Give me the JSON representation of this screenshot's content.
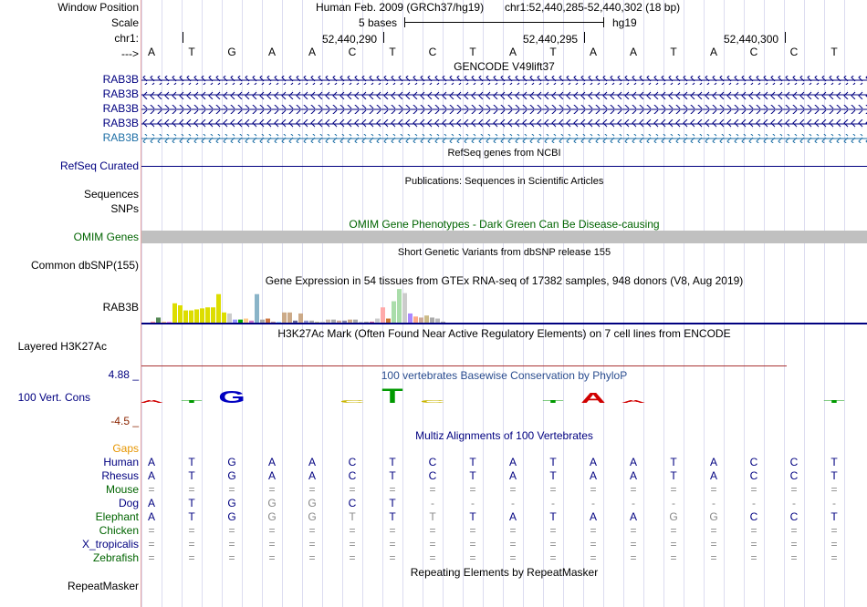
{
  "labels": {
    "window_position": "Window Position",
    "scale": "Scale",
    "chrom": "chr1:",
    "arrow": "--->",
    "gencode_genes": [
      "RAB3B",
      "RAB3B",
      "RAB3B",
      "RAB3B",
      "RAB3B"
    ],
    "refseq": "RefSeq Curated",
    "sequences": "Sequences",
    "snps": "SNPs",
    "omim": "OMIM Genes",
    "dbsnp": "Common dbSNP(155)",
    "gtex_gene": "RAB3B",
    "h3k27ac": "Layered H3K27Ac",
    "phylop_max": "4.88 _",
    "phylop_label": "100 Vert. Cons",
    "phylop_min": "-4.5 _",
    "gaps": "Gaps",
    "species": [
      "Human",
      "Rhesus",
      "Mouse",
      "Dog",
      "Elephant",
      "Chicken",
      "X_tropicalis",
      "Zebrafish"
    ],
    "repeatmasker": "RepeatMasker"
  },
  "header": {
    "assembly": "Human Feb. 2009 (GRCh37/hg19)",
    "position": "chr1:52,440,285-52,440,302 (18 bp)",
    "scale_text": "5 bases",
    "scale_db": "hg19",
    "coords": [
      "52,440,290",
      "52,440,295",
      "52,440,300"
    ]
  },
  "sequence": [
    "A",
    "T",
    "G",
    "A",
    "A",
    "C",
    "T",
    "C",
    "T",
    "A",
    "T",
    "A",
    "A",
    "T",
    "A",
    "C",
    "C",
    "T"
  ],
  "track_titles": {
    "gencode": "GENCODE V49lift37",
    "refseq": "RefSeq genes from NCBI",
    "publications": "Publications: Sequences in Scientific Articles",
    "omim": "OMIM Gene Phenotypes - Dark Green Can Be Disease-causing",
    "dbsnp": "Short Genetic Variants from dbSNP release 155",
    "gtex": "Gene Expression in 54 tissues from GTEx RNA-seq of 17382 samples, 948 donors (V8, Aug 2019)",
    "h3k27ac": "H3K27Ac Mark (Often Found Near Active Regulatory Elements) on 7 cell lines from ENCODE",
    "phylop": "100 vertebrates Basewise Conservation by PhyloP",
    "multiz": "Multiz Alignments of 100 Vertebrates",
    "repeatmasker": "Repeating Elements by RepeatMasker"
  },
  "phylop_letters": [
    {
      "base": "A",
      "color": "#d00000",
      "pos": 0,
      "height": 0.15
    },
    {
      "base": "T",
      "color": "#009900",
      "pos": 1,
      "height": 0.1
    },
    {
      "base": "G",
      "color": "#0000c0",
      "pos": 2,
      "height": 0.7
    },
    {
      "base": "C",
      "color": "#c8b400",
      "pos": 5,
      "height": 0.1
    },
    {
      "base": "T",
      "color": "#009900",
      "pos": 6,
      "height": 0.85
    },
    {
      "base": "C",
      "color": "#c8b400",
      "pos": 7,
      "height": 0.1
    },
    {
      "base": "T",
      "color": "#009900",
      "pos": 10,
      "height": 0.08
    },
    {
      "base": "A",
      "color": "#d00000",
      "pos": 11,
      "height": 0.6
    },
    {
      "base": "A",
      "color": "#d00000",
      "pos": 12,
      "height": 0.15
    },
    {
      "base": "T",
      "color": "#009900",
      "pos": 17,
      "height": 0.08
    }
  ],
  "alignment": {
    "Rhesus": [
      "A",
      "T",
      "G",
      "A",
      "A",
      "C",
      "T",
      "C",
      "T",
      "A",
      "T",
      "A",
      "A",
      "T",
      "A",
      "C",
      "C",
      "T"
    ],
    "Mouse": [
      "=",
      "=",
      "=",
      "=",
      "=",
      "=",
      "=",
      "=",
      "=",
      "=",
      "=",
      "=",
      "=",
      "=",
      "=",
      "=",
      "=",
      "="
    ],
    "Dog": [
      "A",
      "T",
      "G",
      "G",
      "G",
      "C",
      "T",
      "-",
      "-",
      "-",
      "-",
      "-",
      "-",
      "-",
      "-",
      "-",
      "-",
      "-"
    ],
    "Elephant": [
      "A",
      "T",
      "G",
      "G",
      "G",
      "T",
      "T",
      "T",
      "T",
      "A",
      "T",
      "A",
      "A",
      "G",
      "G",
      "C",
      "C",
      "T"
    ],
    "Chicken": [
      "=",
      "=",
      "=",
      "=",
      "=",
      "=",
      "=",
      "=",
      "=",
      "=",
      "=",
      "=",
      "=",
      "=",
      "=",
      "=",
      "=",
      "="
    ],
    "X_tropicalis": [
      "=",
      "=",
      "=",
      "=",
      "=",
      "=",
      "=",
      "=",
      "=",
      "=",
      "=",
      "=",
      "=",
      "=",
      "=",
      "=",
      "=",
      "="
    ],
    "Zebrafish": [
      "=",
      "=",
      "=",
      "=",
      "=",
      "=",
      "=",
      "=",
      "=",
      "=",
      "=",
      "=",
      "=",
      "=",
      "=",
      "=",
      "=",
      "="
    ]
  },
  "chart_data": {
    "type": "bar",
    "title": "Gene Expression in 54 tissues from GTEx RNA-seq of 17382 samples, 948 donors (V8, Aug 2019)",
    "series": [
      {
        "name": "RAB3B",
        "values": [
          0.1,
          0.5,
          0.1,
          0.1,
          1.9,
          1.7,
          1.2,
          1.2,
          1.3,
          1.4,
          1.5,
          1.5,
          2.8,
          1.0,
          0.9,
          0.3,
          0.3,
          0.4,
          0.2,
          2.8,
          0.3,
          0.4,
          0.1,
          0.1,
          1.0,
          1.0,
          0.2,
          0.9,
          0.2,
          0.2,
          0.1,
          0.1,
          0.3,
          0.3,
          0.2,
          0.2,
          0.3,
          0.3,
          0.1,
          0.1,
          0.1,
          0.4,
          1.5,
          0.4,
          2.1,
          3.3,
          2.9,
          0.9,
          0.6,
          0.5,
          0.7,
          0.5,
          0.4,
          0.1
        ],
        "colors": [
          "#ff9999",
          "#558855",
          "#ffcc88",
          "#ff99ee",
          "#dddd00",
          "#dddd00",
          "#dddd00",
          "#dddd00",
          "#dddd00",
          "#dddd00",
          "#dddd00",
          "#dddd00",
          "#dddd00",
          "#dddd00",
          "#cccccc",
          "#9999ff",
          "#00aa00",
          "#ffcc88",
          "#cc77cc",
          "#8ab4c8",
          "#aaaaaa",
          "#cc7744",
          "#bb9999",
          "#aaddff",
          "#ccaa88",
          "#ccaa88",
          "#666699",
          "#ccaa88",
          "#9999cc",
          "#aaaaaa",
          "#cccc99",
          "#cccccc",
          "#ccbbaa",
          "#aaaaaa",
          "#ccaa99",
          "#8888aa",
          "#ccaa88",
          "#aaaaaa",
          "#cccccc",
          "#aaaaaa",
          "#cc6699",
          "#cccccc",
          "#ffaaaa",
          "#cc7733",
          "#aaddaa",
          "#aaddaa",
          "#cccccc",
          "#aa88ff",
          "#ffaa88",
          "#ccaa99",
          "#ccbb88",
          "#aaaaaa",
          "#bbbbbb",
          "#aaaaaa"
        ]
      }
    ],
    "ylim": [
      0,
      3.4
    ]
  }
}
